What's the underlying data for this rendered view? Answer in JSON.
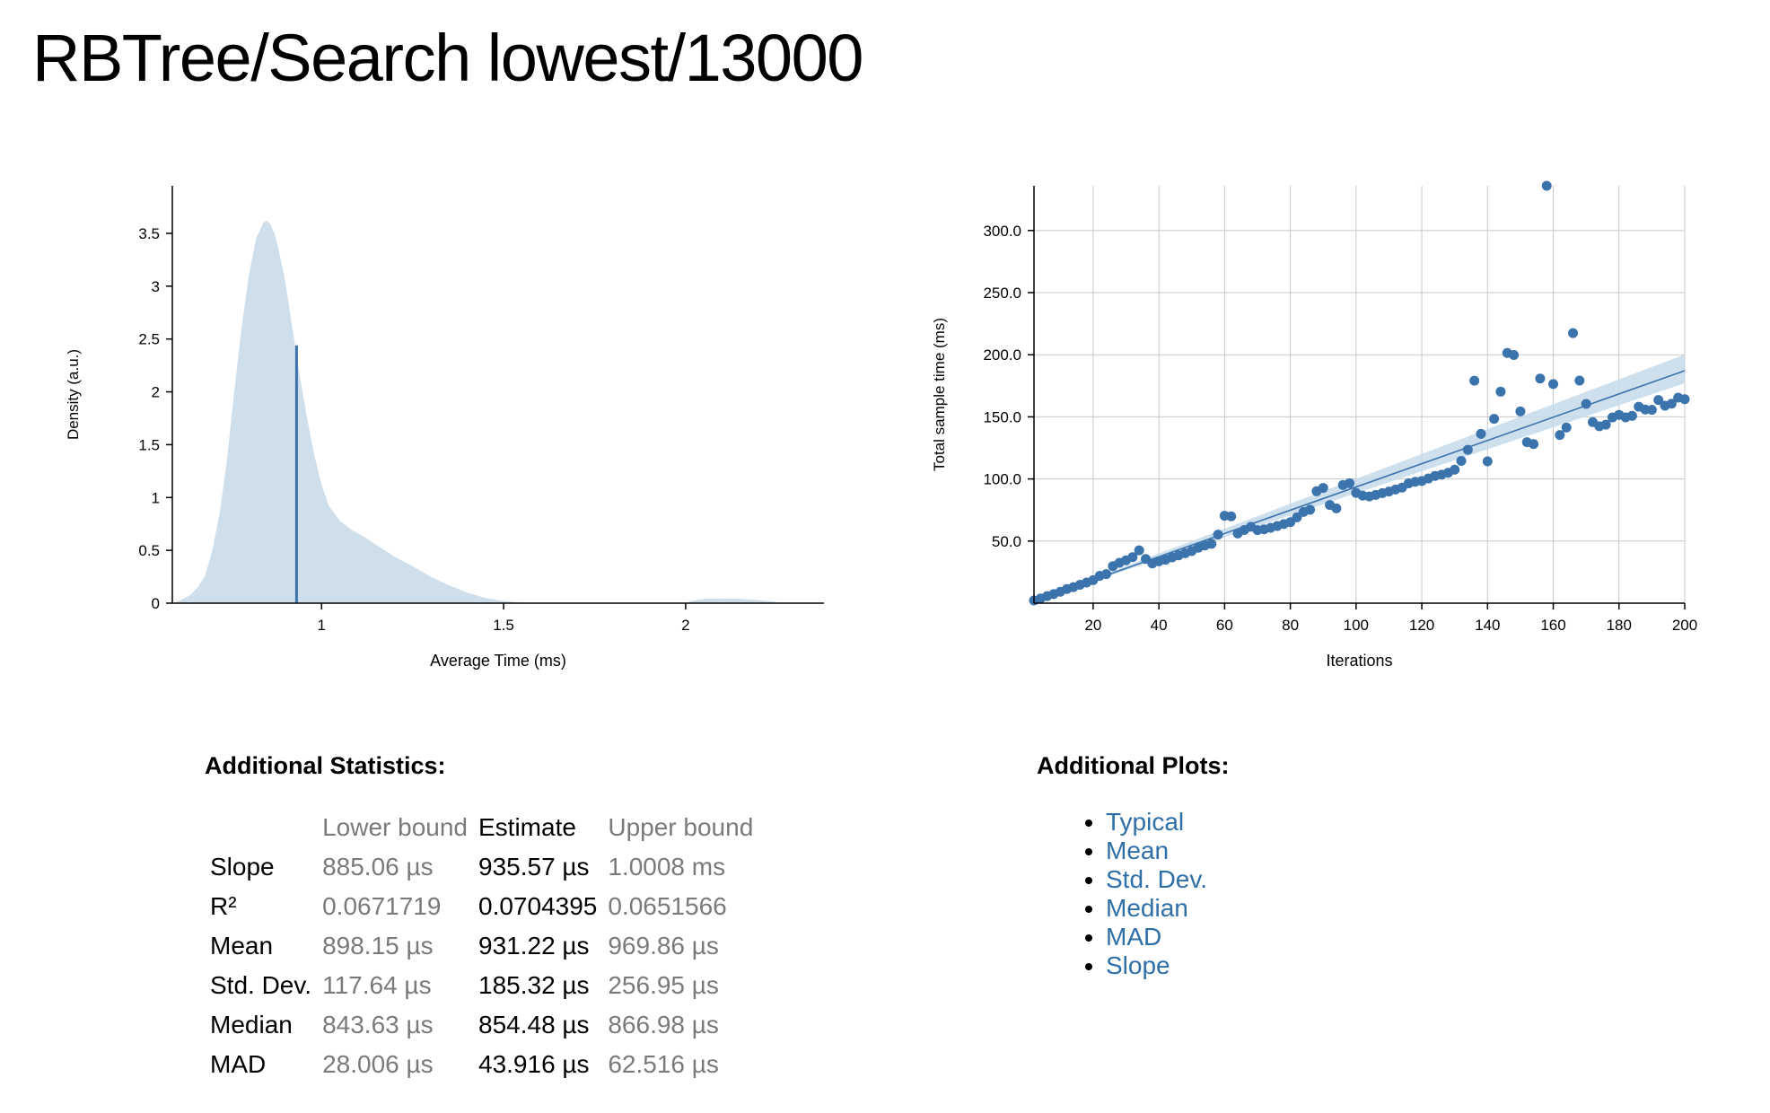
{
  "page": {
    "title": "RBTree/Search lowest/13000"
  },
  "colors": {
    "accent": "#3b73ad",
    "density_fill": "#cfdeeb",
    "ci_band": "#c6d9ea",
    "grid": "#c8c8c8",
    "muted_text": "#7a7a7a",
    "link": "#2f6fa8"
  },
  "chart_data": [
    {
      "type": "area",
      "title": "",
      "xlabel": "Average Time (ms)",
      "ylabel": "Density (a.u.)",
      "xlim": [
        0.59,
        2.38
      ],
      "ylim": [
        0,
        3.95
      ],
      "x_ticks": [
        1,
        1.5,
        2
      ],
      "x_tick_labels": [
        "1",
        "1.5",
        "2"
      ],
      "y_ticks": [
        0,
        0.5,
        1,
        1.5,
        2,
        2.5,
        3,
        3.5
      ],
      "y_tick_labels": [
        "0",
        "0.5",
        "1",
        "1.5",
        "2",
        "2.5",
        "3",
        "3.5"
      ],
      "grid": false,
      "density_curve": {
        "x": [
          0.6,
          0.62,
          0.64,
          0.66,
          0.68,
          0.7,
          0.72,
          0.74,
          0.76,
          0.78,
          0.8,
          0.82,
          0.84,
          0.85,
          0.86,
          0.87,
          0.88,
          0.9,
          0.92,
          0.94,
          0.96,
          0.98,
          1.0,
          1.02,
          1.05,
          1.08,
          1.12,
          1.16,
          1.2,
          1.25,
          1.3,
          1.35,
          1.4,
          1.45,
          1.5,
          1.55,
          1.6,
          1.8,
          2.0,
          2.02,
          2.05,
          2.1,
          2.15,
          2.2,
          2.25
        ],
        "y": [
          0.01,
          0.04,
          0.08,
          0.15,
          0.26,
          0.5,
          0.85,
          1.35,
          2.0,
          2.6,
          3.1,
          3.45,
          3.6,
          3.62,
          3.58,
          3.5,
          3.38,
          3.05,
          2.6,
          2.15,
          1.75,
          1.4,
          1.12,
          0.92,
          0.78,
          0.7,
          0.62,
          0.53,
          0.44,
          0.35,
          0.25,
          0.17,
          0.1,
          0.05,
          0.02,
          0.005,
          0.0,
          0.0,
          0.0,
          0.025,
          0.04,
          0.045,
          0.04,
          0.03,
          0.01
        ]
      },
      "mean_line": {
        "x": 0.93122,
        "y_top": 2.44
      }
    },
    {
      "type": "scatter",
      "title": "",
      "xlabel": "Iterations",
      "ylabel": "Total sample time (ms)",
      "xlim": [
        2,
        200
      ],
      "ylim": [
        0,
        336
      ],
      "x_ticks": [
        20,
        40,
        60,
        80,
        100,
        120,
        140,
        160,
        180,
        200
      ],
      "y_ticks": [
        50,
        100,
        150,
        200,
        250,
        300
      ],
      "y_tick_labels": [
        "50.0",
        "100.0",
        "150.0",
        "200.0",
        "250.0",
        "300.0"
      ],
      "grid": true,
      "x": [
        2,
        4,
        6,
        8,
        10,
        12,
        14,
        16,
        18,
        20,
        22,
        24,
        26,
        28,
        30,
        32,
        34,
        36,
        38,
        40,
        42,
        44,
        46,
        48,
        50,
        52,
        54,
        56,
        58,
        60,
        62,
        64,
        66,
        68,
        70,
        72,
        74,
        76,
        78,
        80,
        82,
        84,
        86,
        88,
        90,
        92,
        94,
        96,
        98,
        100,
        102,
        104,
        106,
        108,
        110,
        112,
        114,
        116,
        118,
        120,
        122,
        124,
        126,
        128,
        130,
        132,
        134,
        136,
        138,
        140,
        142,
        144,
        146,
        148,
        150,
        152,
        154,
        156,
        158,
        160,
        162,
        164,
        166,
        168,
        170,
        172,
        174,
        176,
        178,
        180,
        182,
        184,
        186,
        188,
        190,
        192,
        194,
        196,
        198,
        200
      ],
      "y": [
        2.2,
        3.8,
        5.7,
        7.3,
        9.2,
        11.4,
        12.9,
        14.8,
        16.6,
        18.5,
        22.0,
        23.4,
        29.8,
        32.5,
        34.5,
        37.0,
        42.5,
        35.6,
        32.0,
        33.7,
        35.0,
        36.9,
        38.5,
        40.2,
        42.0,
        44.6,
        46.4,
        47.8,
        55.2,
        70.4,
        69.9,
        56.1,
        58.9,
        61.5,
        58.8,
        59.4,
        60.7,
        62.1,
        63.7,
        65.2,
        69.1,
        73.4,
        75.2,
        90.1,
        92.8,
        79.0,
        76.3,
        95.1,
        96.6,
        88.8,
        86.6,
        85.9,
        87.2,
        88.6,
        89.9,
        91.5,
        93.0,
        96.5,
        97.7,
        98.4,
        100.4,
        102.4,
        103.4,
        105.0,
        107.5,
        114.5,
        123.5,
        179.1,
        136.3,
        114.2,
        148.4,
        170.3,
        201.4,
        199.8,
        154.4,
        129.6,
        128.1,
        180.8,
        336.0,
        176.4,
        135.4,
        141.4,
        217.4,
        179.2,
        160.4,
        145.8,
        142.4,
        143.7,
        149.5,
        151.6,
        149.6,
        150.8,
        158.2,
        155.9,
        155.6,
        163.6,
        159.0,
        160.6,
        165.5,
        164.2
      ],
      "regression_line": {
        "x": [
          2,
          200
        ],
        "y": [
          1.87,
          187.14
        ]
      },
      "confidence_band": {
        "x": [
          2,
          200
        ],
        "lower": [
          1.77,
          177.0
        ],
        "upper": [
          2.0,
          200.2
        ]
      }
    }
  ],
  "stats": {
    "title": "Additional Statistics:",
    "headers": [
      "Lower bound",
      "Estimate",
      "Upper bound"
    ],
    "rows": [
      {
        "label": "Slope",
        "lower": "885.06 µs",
        "estimate": "935.57 µs",
        "upper": "1.0008 ms"
      },
      {
        "label": "R²",
        "lower": "0.0671719",
        "estimate": "0.0704395",
        "upper": "0.0651566"
      },
      {
        "label": "Mean",
        "lower": "898.15 µs",
        "estimate": "931.22 µs",
        "upper": "969.86 µs"
      },
      {
        "label": "Std. Dev.",
        "lower": "117.64 µs",
        "estimate": "185.32 µs",
        "upper": "256.95 µs"
      },
      {
        "label": "Median",
        "lower": "843.63 µs",
        "estimate": "854.48 µs",
        "upper": "866.98 µs"
      },
      {
        "label": "MAD",
        "lower": "28.006 µs",
        "estimate": "43.916 µs",
        "upper": "62.516 µs"
      }
    ]
  },
  "plots": {
    "title": "Additional Plots:",
    "links": [
      "Typical",
      "Mean",
      "Std. Dev.",
      "Median",
      "MAD",
      "Slope"
    ]
  }
}
